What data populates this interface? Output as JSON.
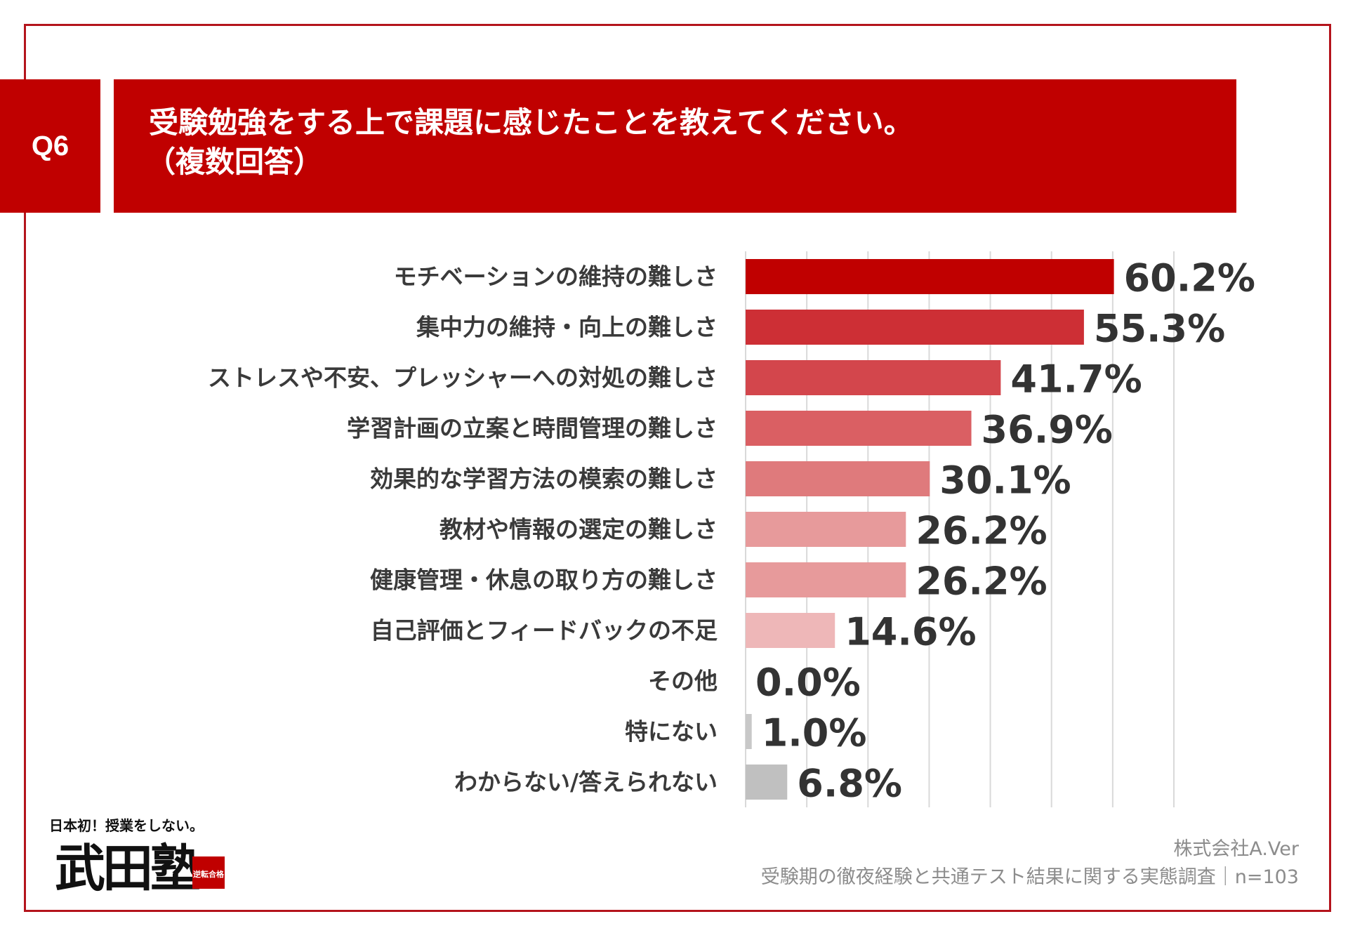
{
  "question": {
    "badge": "Q6",
    "title_line1": "受験勉強をする上で課題に感じたことを教えてください。",
    "title_line2": "（複数回答）"
  },
  "colors": {
    "frame": "#b4141c",
    "header_bg": "#c00000",
    "grid": "#d9d9d9",
    "bar_palette": [
      "#c00000",
      "#cd2f35",
      "#d3464c",
      "#da5f63",
      "#df7a7c",
      "#e79a9b",
      "#e79a9b",
      "#eeb7b8",
      "#eeb7b8",
      "#c8c8c8",
      "#c0c0c0"
    ]
  },
  "chart_data": {
    "type": "bar",
    "orientation": "horizontal",
    "title": "受験勉強をする上で課題に感じたことを教えてください。（複数回答）",
    "categories": [
      "モチベーションの維持の難しさ",
      "集中力の維持・向上の難しさ",
      "ストレスや不安、プレッシャーへの対処の難しさ",
      "学習計画の立案と時間管理の難しさ",
      "効果的な学習方法の模索の難しさ",
      "教材や情報の選定の難しさ",
      "健康管理・休息の取り方の難しさ",
      "自己評価とフィードバックの不足",
      "その他",
      "特にない",
      "わからない/答えられない"
    ],
    "values": [
      60.2,
      55.3,
      41.7,
      36.9,
      30.1,
      26.2,
      26.2,
      14.6,
      0.0,
      1.0,
      6.8
    ],
    "value_labels": [
      "60.2%",
      "55.3%",
      "41.7%",
      "36.9%",
      "30.1%",
      "26.2%",
      "26.2%",
      "14.6%",
      "0.0%",
      "1.0%",
      "6.8%"
    ],
    "xlim": [
      0,
      70
    ],
    "grid": true,
    "grid_step": 10,
    "xlabel": "",
    "ylabel": ""
  },
  "logo": {
    "tagline": "日本初！授業をしない。",
    "brand": "武田塾",
    "seal": "逆転合格"
  },
  "source": {
    "company": "株式会社A.Ver",
    "survey": "受験期の徹夜経験と共通テスト結果に関する実態調査｜n=103"
  }
}
